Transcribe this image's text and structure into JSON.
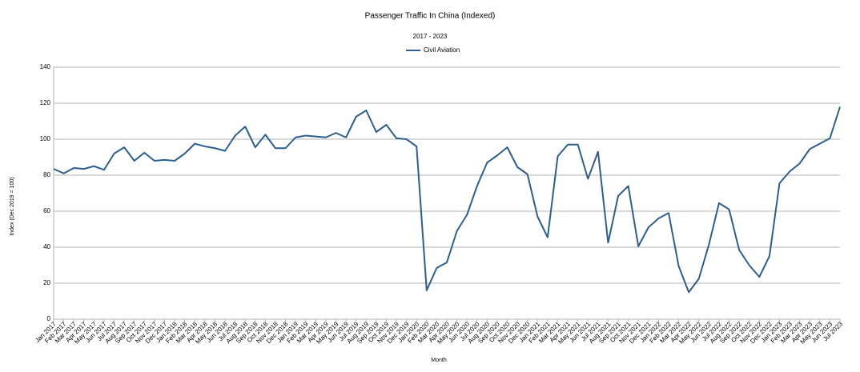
{
  "chart_data": {
    "type": "line",
    "title": "Passenger Traffic In China (Indexed)",
    "subtitle": "2017 - 2023",
    "x_label": "Month",
    "y_label": "Index (Dec 2019 = 100)",
    "categories": [
      "Jan 2017",
      "Feb 2017",
      "Mar 2017",
      "Apr 2017",
      "May 2017",
      "Jun 2017",
      "Jul 2017",
      "Aug 2017",
      "Sep 2017",
      "Oct 2017",
      "Nov 2017",
      "Dec 2017",
      "Jan 2018",
      "Feb 2018",
      "Mar 2018",
      "Apr 2018",
      "May 2018",
      "Jun 2018",
      "Jul 2018",
      "Aug 2018",
      "Sep 2018",
      "Oct 2018",
      "Nov 2018",
      "Dec 2018",
      "Jan 2019",
      "Feb 2019",
      "Mar 2019",
      "Apr 2019",
      "May 2019",
      "Jun 2019",
      "Jul 2019",
      "Aug 2019",
      "Sep 2019",
      "Oct 2019",
      "Nov 2019",
      "Dec 2019",
      "Jan 2020",
      "Feb 2020",
      "Mar 2020",
      "Apr 2020",
      "May 2020",
      "Jun 2020",
      "Jul 2020",
      "Aug 2020",
      "Sep 2020",
      "Oct 2020",
      "Nov 2020",
      "Dec 2020",
      "Jan 2021",
      "Feb 2021",
      "Mar 2021",
      "Apr 2021",
      "May 2021",
      "Jun 2021",
      "Jul 2021",
      "Aug 2021",
      "Sep 2021",
      "Oct 2021",
      "Nov 2021",
      "Dec 2021",
      "Jan 2022",
      "Feb 2022",
      "Mar 2022",
      "Apr 2022",
      "May 2022",
      "Jun 2022",
      "Jul 2022",
      "Aug 2022",
      "Sep 2022",
      "Oct 2022",
      "Nov 2022",
      "Dec 2022",
      "Jan 2023",
      "Feb 2023",
      "Mar 2023",
      "Apr 2023",
      "May 2023",
      "Jun 2023",
      "Jul 2023"
    ],
    "series": [
      {
        "name": "Civil Aviation",
        "color": "#2d5f8e",
        "values": [
          83.5,
          81,
          84,
          83.5,
          85,
          83,
          92,
          95.5,
          88,
          92.5,
          88,
          88.5,
          88,
          92,
          97.5,
          96,
          95,
          93.5,
          102,
          107,
          95.5,
          102.5,
          95,
          95,
          101,
          102,
          101.5,
          101,
          103.5,
          101,
          112.5,
          116,
          104,
          108,
          100.5,
          100,
          96,
          16,
          28.5,
          31.5,
          49,
          58,
          74,
          87,
          91,
          95.5,
          84.5,
          80.5,
          57,
          45.5,
          90.5,
          97,
          97,
          78,
          93,
          42.5,
          68.5,
          74,
          40.5,
          51,
          56,
          59,
          29.5,
          15,
          22.5,
          41.5,
          64.5,
          61,
          38.5,
          30,
          23.5,
          35,
          75.5,
          82,
          86.5,
          94.5,
          97.5,
          100.5,
          118
        ]
      }
    ],
    "ylim": [
      0,
      140
    ],
    "yticks": [
      0,
      20,
      40,
      60,
      80,
      100,
      120,
      140
    ],
    "grid": true,
    "legend": "top"
  }
}
